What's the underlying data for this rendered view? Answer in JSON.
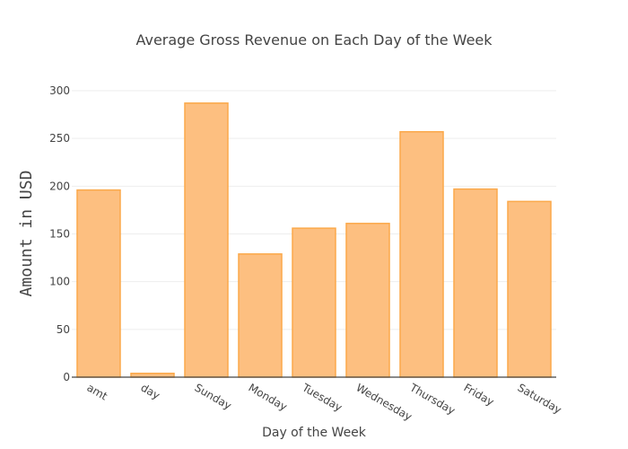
{
  "chart_data": {
    "type": "bar",
    "title": "Average Gross Revenue on Each Day of the Week",
    "xlabel": "Day of the Week",
    "ylabel": "Amount in USD",
    "categories": [
      "amt",
      "day",
      "Sunday",
      "Monday",
      "Tuesday",
      "Wednesday",
      "Thursday",
      "Friday",
      "Saturday"
    ],
    "values": [
      196,
      4,
      287,
      129,
      156,
      161,
      257,
      197,
      184
    ],
    "ylim": [
      0,
      300
    ],
    "yticks": [
      0,
      50,
      100,
      150,
      200,
      250,
      300
    ],
    "grid": true,
    "colors": {
      "bar_fill": "#fdbf80",
      "bar_stroke": "#fba94a"
    }
  }
}
